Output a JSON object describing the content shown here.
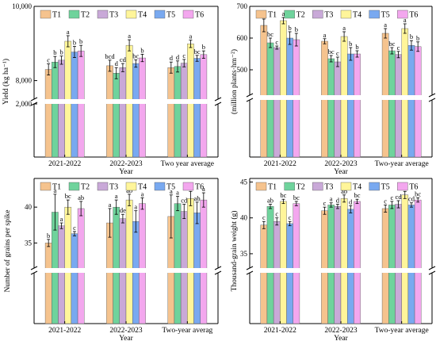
{
  "legend_labels": [
    "T1",
    "T2",
    "T3",
    "T4",
    "T5",
    "T6"
  ],
  "series_colors": [
    "#F5C38E",
    "#6FD39C",
    "#C9A9D8",
    "#FFF59A",
    "#79A9F0",
    "#F3A7EE"
  ],
  "chart_data": [
    {
      "type": "bar",
      "panel": "yield",
      "categories": [
        "2021-2022",
        "2022-2023",
        "Two year average"
      ],
      "xlabel": "Year",
      "ylabel": "Yield (kg ha⁻¹)",
      "y_break": {
        "lower": [
          0,
          2000
        ],
        "upper": [
          7500,
          10000
        ]
      },
      "yticks": [
        {
          "v": 2000,
          "label": "2,000"
        },
        {
          "v": 8000,
          "label": "8,000"
        },
        {
          "v": 10000,
          "label": "10,000"
        }
      ],
      "legend_position": "top",
      "series": [
        {
          "name": "T1",
          "values": [
            8300,
            8400,
            8350
          ],
          "errors": [
            150,
            150,
            150
          ],
          "letters": [
            "c",
            "bcd",
            "d"
          ]
        },
        {
          "name": "T2",
          "values": [
            8500,
            8200,
            8380
          ],
          "errors": [
            150,
            150,
            150
          ],
          "letters": [
            "b",
            "d",
            "d"
          ]
        },
        {
          "name": "T3",
          "values": [
            8550,
            8350,
            8470
          ],
          "errors": [
            110,
            110,
            100
          ],
          "letters": [
            "b",
            "cd",
            "c"
          ]
        },
        {
          "name": "T4",
          "values": [
            9060,
            8950,
            8990
          ],
          "errors": [
            150,
            150,
            100
          ],
          "letters": [
            "a",
            "a",
            "a"
          ]
        },
        {
          "name": "T5",
          "values": [
            8770,
            8460,
            8600
          ],
          "errors": [
            150,
            100,
            80
          ],
          "letters": [
            "b",
            "bc",
            "bc"
          ]
        },
        {
          "name": "T6",
          "values": [
            8800,
            8610,
            8700
          ],
          "errors": [
            150,
            100,
            100
          ],
          "letters": [
            "b",
            "b",
            "b"
          ]
        }
      ]
    },
    {
      "type": "bar",
      "panel": "spikes",
      "categories": [
        "2021-2022",
        "2022-2023",
        "Two-year average"
      ],
      "xlabel": "Year",
      "ylabel": "(million plants·hm⁻²)",
      "y_break": {
        "lower": [
          0,
          25
        ],
        "upper": [
          420,
          700
        ]
      },
      "yticks": [
        {
          "v": 500,
          "label": "500"
        },
        {
          "v": 600,
          "label": "600"
        },
        {
          "v": 700,
          "label": "700"
        }
      ],
      "legend_position": "top",
      "series": [
        {
          "name": "T1",
          "values": [
            640,
            590,
            615
          ],
          "errors": [
            20,
            8,
            15
          ],
          "letters": [
            "a",
            "a",
            "a"
          ]
        },
        {
          "name": "T2",
          "values": [
            585,
            535,
            560
          ],
          "errors": [
            15,
            10,
            10
          ],
          "letters": [
            "bc",
            "bc",
            "bc"
          ]
        },
        {
          "name": "T3",
          "values": [
            570,
            525,
            548
          ],
          "errors": [
            5,
            15,
            10
          ],
          "letters": [
            "c",
            "c",
            "c"
          ]
        },
        {
          "name": "T4",
          "values": [
            655,
            605,
            630
          ],
          "errors": [
            10,
            15,
            15
          ],
          "letters": [
            "a",
            "a",
            "a"
          ]
        },
        {
          "name": "T5",
          "values": [
            600,
            550,
            577
          ],
          "errors": [
            20,
            20,
            15
          ],
          "letters": [
            "b",
            "b",
            "b"
          ]
        },
        {
          "name": "T6",
          "values": [
            595,
            550,
            573
          ],
          "errors": [
            20,
            10,
            15
          ],
          "letters": [
            "b",
            "b",
            "b"
          ]
        }
      ]
    },
    {
      "type": "bar",
      "panel": "grains",
      "categories": [
        "2021-2022",
        "2022-2023",
        "Two-year averag"
      ],
      "xlabel": "Year",
      "ylabel": "Number of grains per spike",
      "y_break": {
        "lower": [
          0,
          5
        ],
        "upper": [
          31.5,
          44
        ]
      },
      "yticks": [
        {
          "v": 35,
          "label": "35"
        },
        {
          "v": 40,
          "label": "40"
        }
      ],
      "legend_position": "top",
      "series": [
        {
          "name": "T1",
          "values": [
            35,
            37.8,
            38.7
          ],
          "errors": [
            0.5,
            2.0,
            3.0
          ],
          "letters": [
            "b",
            "a",
            "a"
          ]
        },
        {
          "name": "T2",
          "values": [
            39.3,
            40,
            40.5
          ],
          "errors": [
            2.5,
            1.0,
            1.0
          ],
          "letters": [
            "a",
            "a",
            "a"
          ]
        },
        {
          "name": "T3",
          "values": [
            37.4,
            38.4,
            39.4
          ],
          "errors": [
            0.4,
            0.6,
            1.0
          ],
          "letters": [
            "a",
            "de",
            "cd"
          ]
        },
        {
          "name": "T4",
          "values": [
            40,
            41,
            41.2
          ],
          "errors": [
            1.0,
            0.8,
            1.0
          ],
          "letters": [
            "bc",
            "ab",
            "a"
          ]
        },
        {
          "name": "T5",
          "values": [
            36.3,
            38,
            39.2
          ],
          "errors": [
            0.3,
            1.5,
            1.5
          ],
          "letters": [
            "c",
            "a",
            "ab"
          ]
        },
        {
          "name": "T6",
          "values": [
            39.8,
            40.5,
            41
          ],
          "errors": [
            1.0,
            0.8,
            1.0
          ],
          "letters": [
            "ab",
            "a",
            "a"
          ]
        }
      ]
    },
    {
      "type": "bar",
      "panel": "tgw",
      "categories": [
        "2021-2022",
        "2022-2023",
        "Two-year average"
      ],
      "xlabel": "Year",
      "ylabel": "Thousand-grain weight (g)",
      "y_break": {
        "lower": [
          0,
          5
        ],
        "upper": [
          33,
          45.5
        ]
      },
      "yticks": [
        {
          "v": 35,
          "label": "35"
        },
        {
          "v": 40,
          "label": "40"
        },
        {
          "v": 45,
          "label": "45"
        }
      ],
      "legend_position": "top",
      "series": [
        {
          "name": "T1",
          "values": [
            39,
            41,
            41.3
          ],
          "errors": [
            0.5,
            0.5,
            0.5
          ],
          "letters": [
            "c",
            "c",
            "c"
          ]
        },
        {
          "name": "T2",
          "values": [
            41.6,
            41.8,
            41.8
          ],
          "errors": [
            0.3,
            0.3,
            0.5
          ],
          "letters": [
            "ab",
            "a",
            "c"
          ]
        },
        {
          "name": "T3",
          "values": [
            39.5,
            41.6,
            41.9
          ],
          "errors": [
            0.5,
            0.3,
            0.5
          ],
          "letters": [
            "c",
            "d",
            "cd"
          ]
        },
        {
          "name": "T4",
          "values": [
            42.3,
            42.7,
            43.2
          ],
          "errors": [
            0.3,
            0.5,
            0.5
          ],
          "letters": [
            "bc",
            "ab",
            "a"
          ]
        },
        {
          "name": "T5",
          "values": [
            39.2,
            41.2,
            41.8
          ],
          "errors": [
            0.3,
            0.5,
            0.3
          ],
          "letters": [
            "c",
            "d",
            "cd"
          ]
        },
        {
          "name": "T6",
          "values": [
            42,
            42.3,
            42.5
          ],
          "errors": [
            0.3,
            0.3,
            0.3
          ],
          "letters": [
            "bc",
            "bc",
            "bc"
          ]
        }
      ]
    }
  ]
}
